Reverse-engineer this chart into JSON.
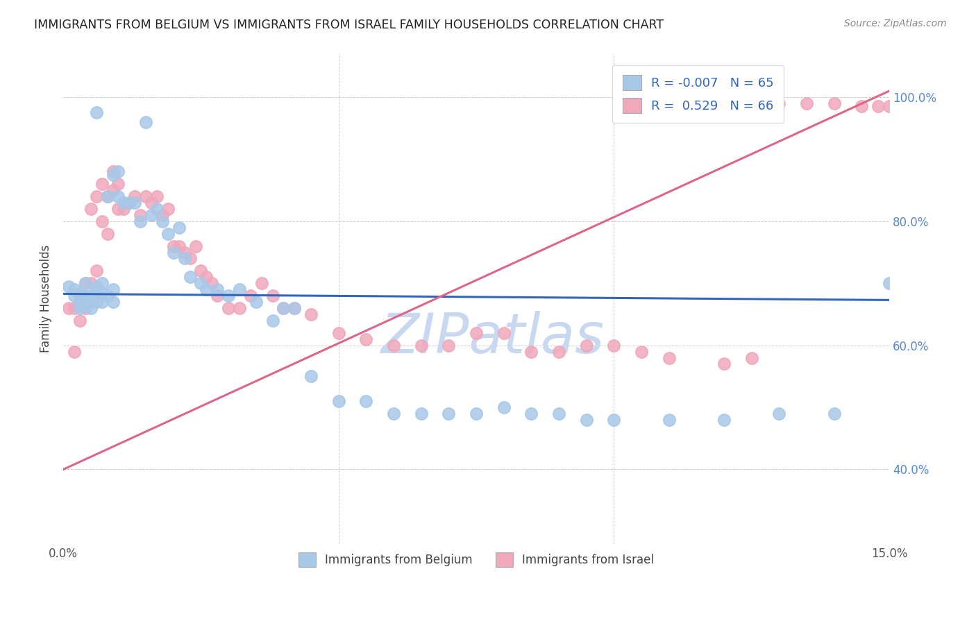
{
  "title": "IMMIGRANTS FROM BELGIUM VS IMMIGRANTS FROM ISRAEL FAMILY HOUSEHOLDS CORRELATION CHART",
  "source": "Source: ZipAtlas.com",
  "ylabel": "Family Households",
  "ylabel_right_ticks": [
    "40.0%",
    "60.0%",
    "80.0%",
    "100.0%"
  ],
  "ylabel_right_vals": [
    0.4,
    0.6,
    0.8,
    1.0
  ],
  "xlim": [
    0.0,
    0.15
  ],
  "ylim": [
    0.28,
    1.07
  ],
  "belgium_color": "#A8C8E8",
  "israel_color": "#F0A8BB",
  "belgium_line_color": "#3366BB",
  "israel_line_color": "#DD6688",
  "watermark_color": "#C8D8F0",
  "belgium_x": [
    0.001,
    0.002,
    0.002,
    0.003,
    0.003,
    0.003,
    0.004,
    0.004,
    0.004,
    0.005,
    0.005,
    0.005,
    0.006,
    0.006,
    0.006,
    0.007,
    0.007,
    0.007,
    0.008,
    0.008,
    0.009,
    0.009,
    0.01,
    0.01,
    0.011,
    0.012,
    0.013,
    0.014,
    0.015,
    0.016,
    0.017,
    0.018,
    0.019,
    0.02,
    0.021,
    0.022,
    0.023,
    0.025,
    0.026,
    0.028,
    0.03,
    0.032,
    0.035,
    0.038,
    0.04,
    0.042,
    0.045,
    0.05,
    0.055,
    0.06,
    0.065,
    0.07,
    0.075,
    0.08,
    0.085,
    0.09,
    0.095,
    0.1,
    0.11,
    0.12,
    0.13,
    0.14,
    0.15,
    0.006,
    0.009
  ],
  "belgium_y": [
    0.695,
    0.68,
    0.69,
    0.685,
    0.67,
    0.66,
    0.7,
    0.68,
    0.665,
    0.68,
    0.67,
    0.66,
    0.695,
    0.685,
    0.67,
    0.7,
    0.685,
    0.67,
    0.84,
    0.68,
    0.69,
    0.67,
    0.88,
    0.84,
    0.83,
    0.83,
    0.83,
    0.8,
    0.96,
    0.81,
    0.82,
    0.8,
    0.78,
    0.75,
    0.79,
    0.74,
    0.71,
    0.7,
    0.69,
    0.69,
    0.68,
    0.69,
    0.67,
    0.64,
    0.66,
    0.66,
    0.55,
    0.51,
    0.51,
    0.49,
    0.49,
    0.49,
    0.49,
    0.5,
    0.49,
    0.49,
    0.48,
    0.48,
    0.48,
    0.48,
    0.49,
    0.49,
    0.7,
    0.975,
    0.875
  ],
  "israel_x": [
    0.001,
    0.002,
    0.002,
    0.003,
    0.003,
    0.004,
    0.004,
    0.005,
    0.005,
    0.006,
    0.006,
    0.007,
    0.007,
    0.008,
    0.008,
    0.009,
    0.009,
    0.01,
    0.01,
    0.011,
    0.012,
    0.013,
    0.014,
    0.015,
    0.016,
    0.017,
    0.018,
    0.019,
    0.02,
    0.021,
    0.022,
    0.023,
    0.024,
    0.025,
    0.026,
    0.027,
    0.028,
    0.03,
    0.032,
    0.034,
    0.036,
    0.038,
    0.04,
    0.042,
    0.045,
    0.05,
    0.055,
    0.06,
    0.065,
    0.07,
    0.075,
    0.08,
    0.085,
    0.09,
    0.095,
    0.1,
    0.105,
    0.11,
    0.12,
    0.125,
    0.13,
    0.135,
    0.14,
    0.145,
    0.148,
    0.15
  ],
  "israel_y": [
    0.66,
    0.59,
    0.66,
    0.64,
    0.68,
    0.7,
    0.66,
    0.82,
    0.7,
    0.84,
    0.72,
    0.86,
    0.8,
    0.84,
    0.78,
    0.88,
    0.85,
    0.86,
    0.82,
    0.82,
    0.83,
    0.84,
    0.81,
    0.84,
    0.83,
    0.84,
    0.81,
    0.82,
    0.76,
    0.76,
    0.75,
    0.74,
    0.76,
    0.72,
    0.71,
    0.7,
    0.68,
    0.66,
    0.66,
    0.68,
    0.7,
    0.68,
    0.66,
    0.66,
    0.65,
    0.62,
    0.61,
    0.6,
    0.6,
    0.6,
    0.62,
    0.62,
    0.59,
    0.59,
    0.6,
    0.6,
    0.59,
    0.58,
    0.57,
    0.58,
    0.99,
    0.99,
    0.99,
    0.985,
    0.985,
    0.985
  ],
  "bel_line_x0": 0.0,
  "bel_line_x1": 0.15,
  "bel_line_y0": 0.683,
  "bel_line_y1": 0.673,
  "isr_line_x0": 0.0,
  "isr_line_x1": 0.15,
  "isr_line_y0": 0.4,
  "isr_line_y1": 1.01
}
